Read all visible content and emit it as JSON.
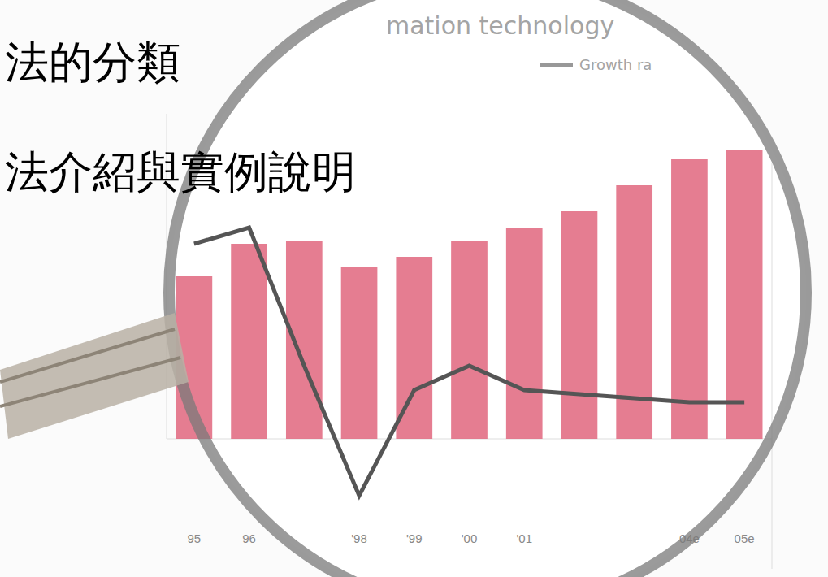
{
  "slide": {
    "headings": [
      "法的分類",
      "法介紹與實例說明"
    ]
  },
  "chart_data": {
    "type": "bar",
    "title": "mation technology",
    "categories": [
      "95",
      "96",
      null,
      "'98",
      "'99",
      "'00",
      "'01",
      null,
      null,
      "04e",
      "05e"
    ],
    "series": [
      {
        "type": "bar",
        "color": "#e0667e",
        "values": [
          50,
          60,
          61,
          53,
          56,
          61,
          65,
          70,
          78,
          86,
          89
        ]
      },
      {
        "name": "Growth ra",
        "type": "line",
        "color": "#555555",
        "axis": "y2",
        "line_style": "solid",
        "values": [
          80,
          84,
          50,
          18,
          44,
          50,
          44,
          43,
          42,
          41,
          41
        ]
      }
    ],
    "ylim": [
      0,
      100
    ],
    "y2lim": [
      0,
      100
    ],
    "tick_labels": "x",
    "legend": "upper right"
  }
}
